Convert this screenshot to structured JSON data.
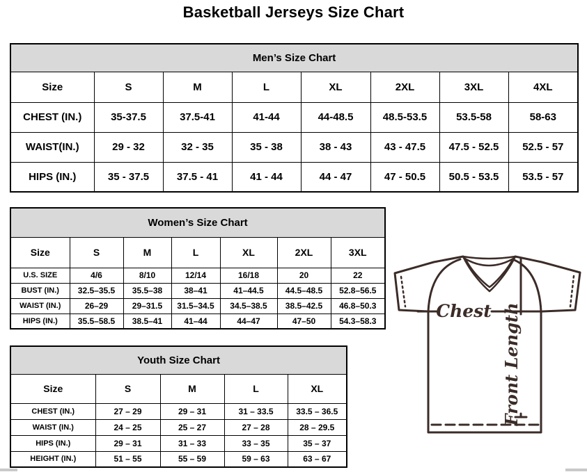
{
  "title": "Basketball Jerseys Size Chart",
  "mens": {
    "title": "Men’s Size Chart",
    "columns": [
      "Size",
      "S",
      "M",
      "L",
      "XL",
      "2XL",
      "3XL",
      "4XL"
    ],
    "rows": [
      {
        "label": "CHEST (IN.)",
        "values": [
          "35-37.5",
          "37.5-41",
          "41-44",
          "44-48.5",
          "48.5-53.5",
          "53.5-58",
          "58-63"
        ]
      },
      {
        "label": "WAIST(IN.)",
        "values": [
          "29 - 32",
          "32 - 35",
          "35 - 38",
          "38 - 43",
          "43 - 47.5",
          "47.5 - 52.5",
          "52.5 - 57"
        ]
      },
      {
        "label": "HIPS (IN.)",
        "values": [
          "35 - 37.5",
          "37.5 - 41",
          "41 - 44",
          "44 - 47",
          "47 - 50.5",
          "50.5 - 53.5",
          "53.5 - 57"
        ]
      }
    ]
  },
  "womens": {
    "title": "Women’s Size Chart",
    "columns": [
      "Size",
      "S",
      "M",
      "L",
      "XL",
      "2XL",
      "3XL"
    ],
    "rows": [
      {
        "label": "U.S. SIZE",
        "values": [
          "4/6",
          "8/10",
          "12/14",
          "16/18",
          "20",
          "22"
        ]
      },
      {
        "label": "BUST (IN.)",
        "values": [
          "32.5–35.5",
          "35.5–38",
          "38–41",
          "41–44.5",
          "44.5–48.5",
          "52.8–56.5"
        ]
      },
      {
        "label": "WAIST (IN.)",
        "values": [
          "26–29",
          "29–31.5",
          "31.5–34.5",
          "34.5–38.5",
          "38.5–42.5",
          "46.8–50.3"
        ]
      },
      {
        "label": "HIPS (IN.)",
        "values": [
          "35.5–58.5",
          "38.5–41",
          "41–44",
          "44–47",
          "47–50",
          "54.3–58.3"
        ]
      }
    ]
  },
  "youth": {
    "title": "Youth Size Chart",
    "columns": [
      "Size",
      "S",
      "M",
      "L",
      "XL"
    ],
    "rows": [
      {
        "label": "CHEST (IN.)",
        "values": [
          "27 – 29",
          "29 – 31",
          "31 – 33.5",
          "33.5 – 36.5"
        ]
      },
      {
        "label": "WAIST (IN.)",
        "values": [
          "24 – 25",
          "25 – 27",
          "27 – 28",
          "28 – 29.5"
        ]
      },
      {
        "label": "HIPS (IN.)",
        "values": [
          "29 – 31",
          "31 – 33",
          "33 – 35",
          "35 – 37"
        ]
      },
      {
        "label": "HEIGHT (IN.)",
        "values": [
          "51 – 55",
          "55 – 59",
          "59 – 63",
          "63 – 67"
        ]
      }
    ]
  },
  "diagram": {
    "chest_label": "Chest",
    "front_length_label": "Front Length"
  },
  "colors": {
    "table_header_bg": "#d9d9d9",
    "table_border": "#000000",
    "jersey_stroke": "#3b2c28"
  }
}
